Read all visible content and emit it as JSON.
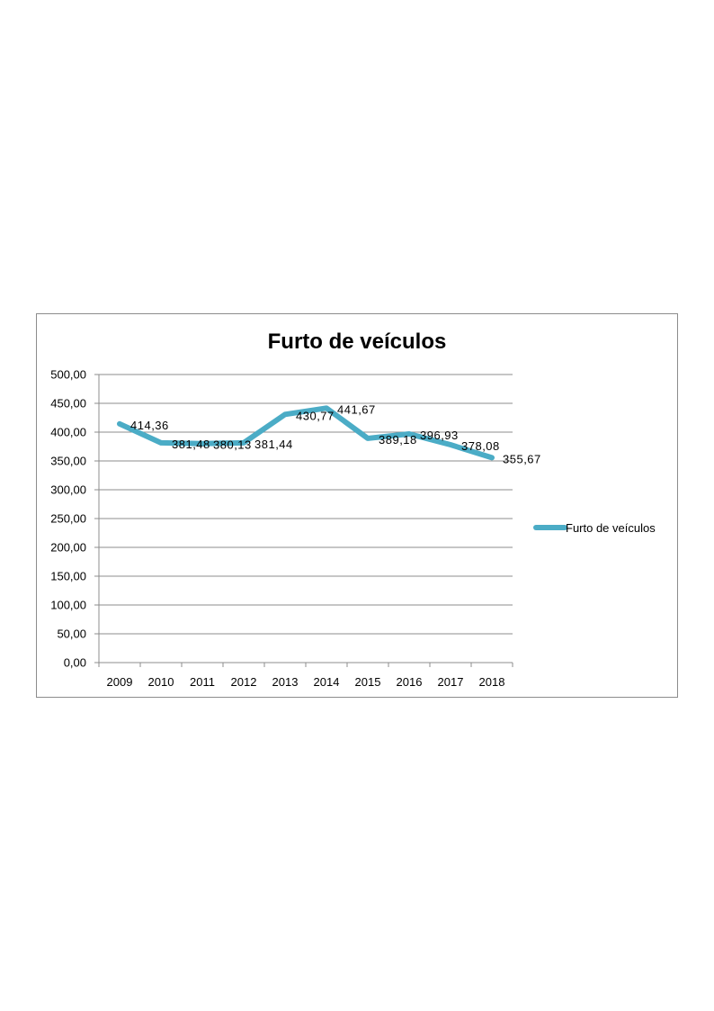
{
  "chart_data": {
    "type": "line",
    "title": "Furto de veículos",
    "categories": [
      "2009",
      "2010",
      "2011",
      "2012",
      "2013",
      "2014",
      "2015",
      "2016",
      "2017",
      "2018"
    ],
    "series": [
      {
        "name": "Furto de veículos",
        "values": [
          414.36,
          381.48,
          380.13,
          381.44,
          430.77,
          441.67,
          389.18,
          396.93,
          378.08,
          355.67
        ],
        "labels": [
          "414,36",
          "381,48",
          "380,13",
          "381,44",
          "430,77",
          "441,67",
          "389,18",
          "396,93",
          "378,08",
          "355,67"
        ],
        "color": "#4BACC6"
      }
    ],
    "ylim": [
      0,
      500
    ],
    "yticks": [
      "0,00",
      "50,00",
      "100,00",
      "150,00",
      "200,00",
      "250,00",
      "300,00",
      "350,00",
      "400,00",
      "450,00",
      "500,00"
    ],
    "grid": true,
    "legend": "right"
  }
}
